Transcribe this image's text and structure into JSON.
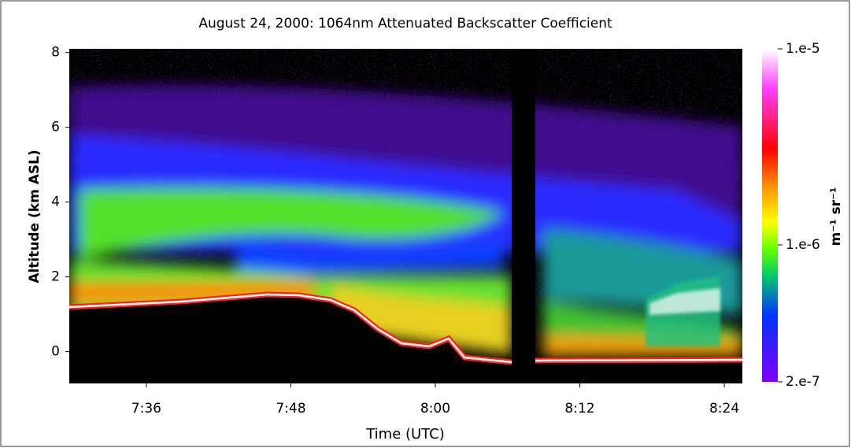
{
  "chart_data": {
    "type": "heatmap",
    "title": "August 24, 2000:  1064nm Attenuated Backscatter Coefficient",
    "x_label": "Time (UTC)",
    "y_label": "Altitude (km ASL)",
    "colorbar_label": "m⁻¹ sr⁻¹",
    "xlim": [
      449.6,
      505.5
    ],
    "xticks": [
      {
        "value": 456,
        "label": "7:36"
      },
      {
        "value": 468,
        "label": "7:48"
      },
      {
        "value": 480,
        "label": "8:00"
      },
      {
        "value": 492,
        "label": "8:12"
      },
      {
        "value": 504,
        "label": "8:24"
      }
    ],
    "ylim": [
      -0.85,
      8.1
    ],
    "yticks": [
      0,
      2,
      4,
      6,
      8
    ],
    "zlim": [
      2e-07,
      1e-05
    ],
    "zlog": true,
    "zticks": [
      {
        "value": 1e-05,
        "label": "1.e-5"
      },
      {
        "value": 1e-06,
        "label": "1.e-6"
      },
      {
        "value": 2e-07,
        "label": "2.e-7"
      }
    ]
  }
}
